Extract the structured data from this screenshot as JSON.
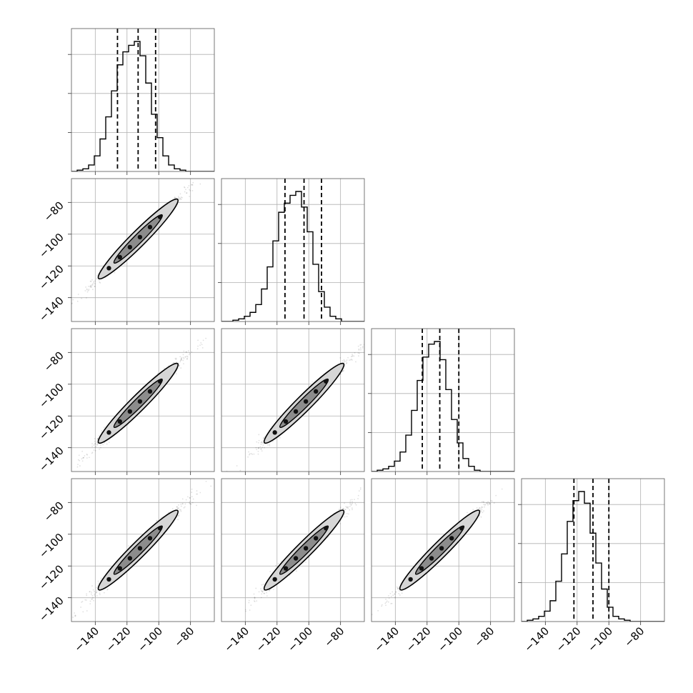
{
  "chart_data": {
    "type": "corner",
    "parameters": 4,
    "title": "",
    "grid": true,
    "xlim": [
      -155,
      -65
    ],
    "ylim": [
      -155,
      -65
    ],
    "x_tick_values": [
      -140,
      -120,
      -100,
      -80
    ],
    "y_tick_values": [
      -140,
      -120,
      -100,
      -80
    ],
    "x_tick_labels": [
      "−140",
      "−120",
      "−100",
      "−80"
    ],
    "y_tick_labels": [
      "−140",
      "−120",
      "−100",
      "−80"
    ],
    "histograms": [
      {
        "bin_edges": [
          -155,
          -151.4,
          -147.8,
          -144.2,
          -140.6,
          -137,
          -133.4,
          -129.8,
          -126.2,
          -122.6,
          -119,
          -115.4,
          -111.8,
          -108.2,
          -104.6,
          -101,
          -97.4,
          -93.8,
          -90.2,
          -86.6,
          -83,
          -79.4,
          -75.8,
          -72.2,
          -68.6,
          -65
        ],
        "counts": [
          0.0,
          0.01,
          0.02,
          0.05,
          0.12,
          0.25,
          0.42,
          0.62,
          0.82,
          0.92,
          0.97,
          1.0,
          0.89,
          0.68,
          0.44,
          0.26,
          0.12,
          0.05,
          0.02,
          0.01,
          0.0,
          0.0,
          0.0,
          0.0,
          0.0
        ],
        "quantiles": [
          -126.0,
          -113.0,
          -102.0
        ]
      },
      {
        "bin_edges": [
          -155,
          -151.4,
          -147.8,
          -144.2,
          -140.6,
          -137,
          -133.4,
          -129.8,
          -126.2,
          -122.6,
          -119,
          -115.4,
          -111.8,
          -108.2,
          -104.6,
          -101,
          -97.4,
          -93.8,
          -90.2,
          -86.6,
          -83,
          -79.4,
          -75.8,
          -72.2,
          -68.6,
          -65
        ],
        "counts": [
          0.0,
          0.0,
          0.01,
          0.02,
          0.04,
          0.07,
          0.13,
          0.25,
          0.42,
          0.62,
          0.84,
          0.91,
          0.97,
          1.0,
          0.88,
          0.69,
          0.44,
          0.23,
          0.11,
          0.04,
          0.02,
          0.0,
          0.0,
          0.0,
          0.0
        ],
        "quantiles": [
          -115.0,
          -103.0,
          -92.0
        ]
      },
      {
        "bin_edges": [
          -155,
          -151.4,
          -147.8,
          -144.2,
          -140.6,
          -137,
          -133.4,
          -129.8,
          -126.2,
          -122.6,
          -119,
          -115.4,
          -111.8,
          -108.2,
          -104.6,
          -101,
          -97.4,
          -93.8,
          -90.2,
          -86.6,
          -83,
          -79.4,
          -75.8,
          -72.2,
          -68.6,
          -65
        ],
        "counts": [
          0.0,
          0.01,
          0.02,
          0.04,
          0.08,
          0.15,
          0.28,
          0.47,
          0.7,
          0.88,
          0.98,
          1.0,
          0.86,
          0.63,
          0.4,
          0.22,
          0.1,
          0.04,
          0.01,
          0.0,
          0.0,
          0.0,
          0.0,
          0.0,
          0.0
        ],
        "quantiles": [
          -123.0,
          -112.0,
          -100.0
        ]
      },
      {
        "bin_edges": [
          -155,
          -151.4,
          -147.8,
          -144.2,
          -140.6,
          -137,
          -133.4,
          -129.8,
          -126.2,
          -122.6,
          -119,
          -115.4,
          -111.8,
          -108.2,
          -104.6,
          -101,
          -97.4,
          -93.8,
          -90.2,
          -86.6,
          -83,
          -79.4,
          -75.8,
          -72.2,
          -68.6,
          -65
        ],
        "counts": [
          0.0,
          0.01,
          0.02,
          0.04,
          0.08,
          0.16,
          0.31,
          0.52,
          0.77,
          0.93,
          1.0,
          0.91,
          0.68,
          0.45,
          0.25,
          0.11,
          0.04,
          0.02,
          0.01,
          0.0,
          0.0,
          0.0,
          0.0,
          0.0,
          0.0
        ],
        "quantiles": [
          -122.0,
          -110.0,
          -100.0
        ]
      }
    ],
    "scatter_panels": [
      {
        "row": 1,
        "col": 0,
        "mean": [
          -113.0,
          -103.0
        ],
        "spread": 11.5,
        "corr": 0.985
      },
      {
        "row": 2,
        "col": 0,
        "mean": [
          -113.0,
          -112.0
        ],
        "spread": 11.5,
        "corr": 0.98
      },
      {
        "row": 2,
        "col": 1,
        "mean": [
          -103.0,
          -112.0
        ],
        "spread": 11.5,
        "corr": 0.98
      },
      {
        "row": 3,
        "col": 0,
        "mean": [
          -113.0,
          -110.0
        ],
        "spread": 11.5,
        "corr": 0.975
      },
      {
        "row": 3,
        "col": 1,
        "mean": [
          -103.0,
          -110.0
        ],
        "spread": 11.5,
        "corr": 0.975
      },
      {
        "row": 3,
        "col": 2,
        "mean": [
          -112.0,
          -110.0
        ],
        "spread": 11.5,
        "corr": 0.985
      }
    ]
  }
}
